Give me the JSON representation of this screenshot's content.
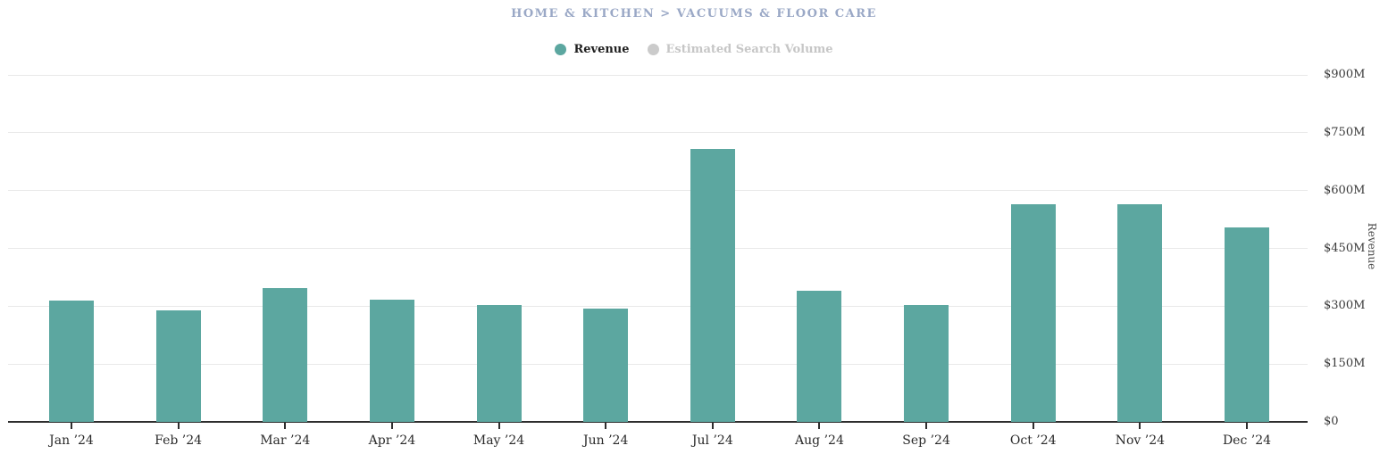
{
  "chart_data": {
    "type": "bar",
    "title": "HOME & KITCHEN > VACUUMS & FLOOR CARE",
    "categories": [
      "Jan ’24",
      "Feb ’24",
      "Mar ’24",
      "Apr ’24",
      "May ’24",
      "Jun ’24",
      "Jul ’24",
      "Aug ’24",
      "Sep ’24",
      "Oct ’24",
      "Nov ’24",
      "Dec ’24"
    ],
    "series": [
      {
        "name": "Revenue",
        "unit": "USD millions",
        "color": "#5CA7A0",
        "visible": true,
        "values": [
          314,
          290,
          346,
          318,
          304,
          293,
          708,
          339,
          302,
          564,
          564,
          504
        ]
      },
      {
        "name": "Estimated Search Volume",
        "color": "#CBCBCB",
        "visible": false,
        "values": []
      }
    ],
    "xlabel": "",
    "ylabel": "Revenue",
    "ylim": [
      0,
      900
    ],
    "ytick_values": [
      0,
      150,
      300,
      450,
      600,
      750,
      900
    ],
    "ytick_labels": [
      "$0",
      "$150M",
      "$300M",
      "$450M",
      "$600M",
      "$750M",
      "$900M"
    ],
    "yaxis_side": "right",
    "grid": true,
    "legend_position": "top"
  },
  "colors": {
    "bar": "#5CA7A0",
    "title": "#9AA8C6",
    "legend_active_text": "#1F1F1F",
    "legend_inactive_text": "#C6C6C6",
    "legend_inactive_dot": "#CBCBCB",
    "gridline": "#E9E9E9",
    "axis_line": "#2E2E2E",
    "tick_label": "#3A3A3A",
    "background": "#FFFFFF"
  }
}
